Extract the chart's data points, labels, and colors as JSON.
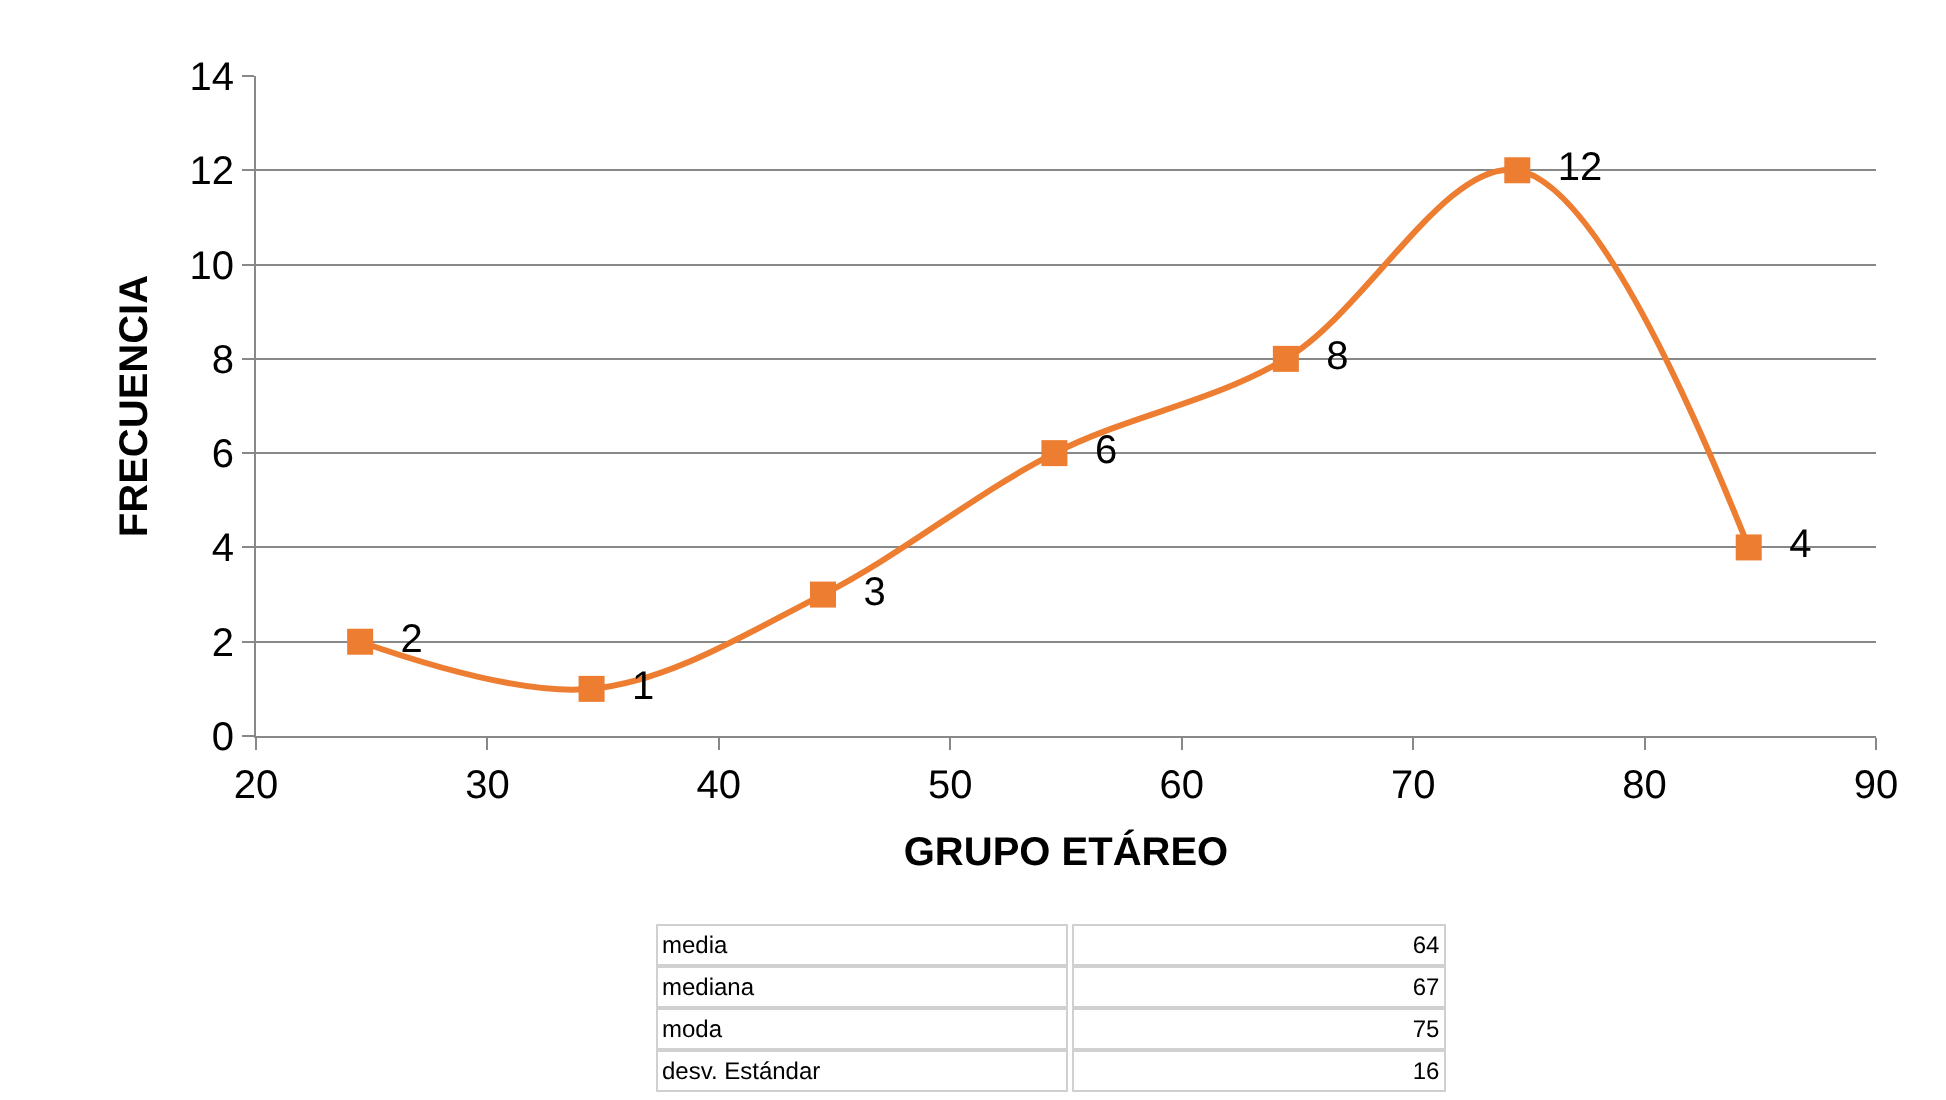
{
  "chart_data": {
    "type": "line",
    "xlabel": "GRUPO ETÁREO",
    "ylabel": "FRECUENCIA",
    "x": [
      24.5,
      34.5,
      44.5,
      54.5,
      64.5,
      74.5,
      84.5
    ],
    "series": [
      {
        "color": "#ed7d31",
        "values": [
          2,
          1,
          3,
          6,
          8,
          12,
          4
        ]
      }
    ],
    "xlim": [
      20,
      90
    ],
    "xticks": [
      20,
      30,
      40,
      50,
      60,
      70,
      80,
      90
    ],
    "ylim": [
      0,
      14
    ],
    "yticks": [
      0,
      2,
      4,
      6,
      8,
      10,
      12,
      14
    ],
    "grid": "y",
    "marker": "square",
    "line_style": "solid",
    "data_labels": true,
    "legend": false,
    "annotations": [
      "media",
      "64",
      "mediana",
      "67",
      "moda",
      "75",
      "desv. Estándar",
      "16"
    ]
  }
}
